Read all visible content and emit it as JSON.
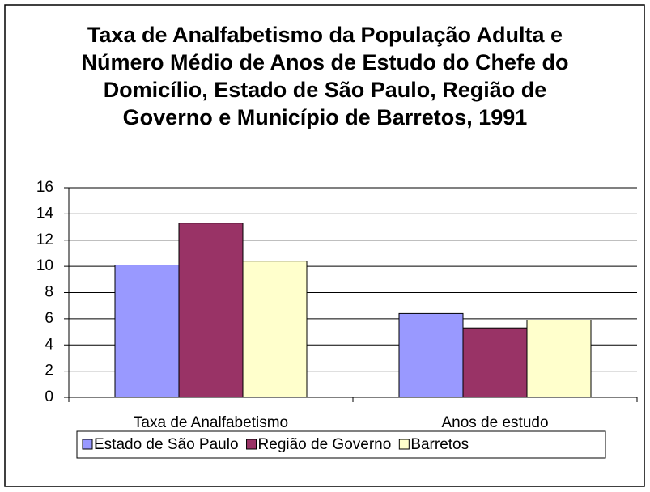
{
  "chart_data": {
    "type": "bar",
    "title": "Taxa de Analfabetismo da População Adulta e Número Médio de Anos de Estudo do Chefe do Domicílio, Estado de São Paulo, Região de Governo e Município de Barretos, 1991",
    "categories": [
      "Taxa de Analfabetismo",
      "Anos de estudo"
    ],
    "series": [
      {
        "name": "Estado de São Paulo",
        "color": "#9999ff",
        "values": [
          10.1,
          6.4
        ]
      },
      {
        "name": "Região de Governo",
        "color": "#993366",
        "values": [
          13.3,
          5.3
        ]
      },
      {
        "name": "Barretos",
        "color": "#ffffcc",
        "values": [
          10.4,
          5.9
        ]
      }
    ],
    "ylim": [
      0,
      16
    ],
    "yticks": [
      0,
      2,
      4,
      6,
      8,
      10,
      12,
      14,
      16
    ],
    "grid": true,
    "legend": "bottom"
  }
}
